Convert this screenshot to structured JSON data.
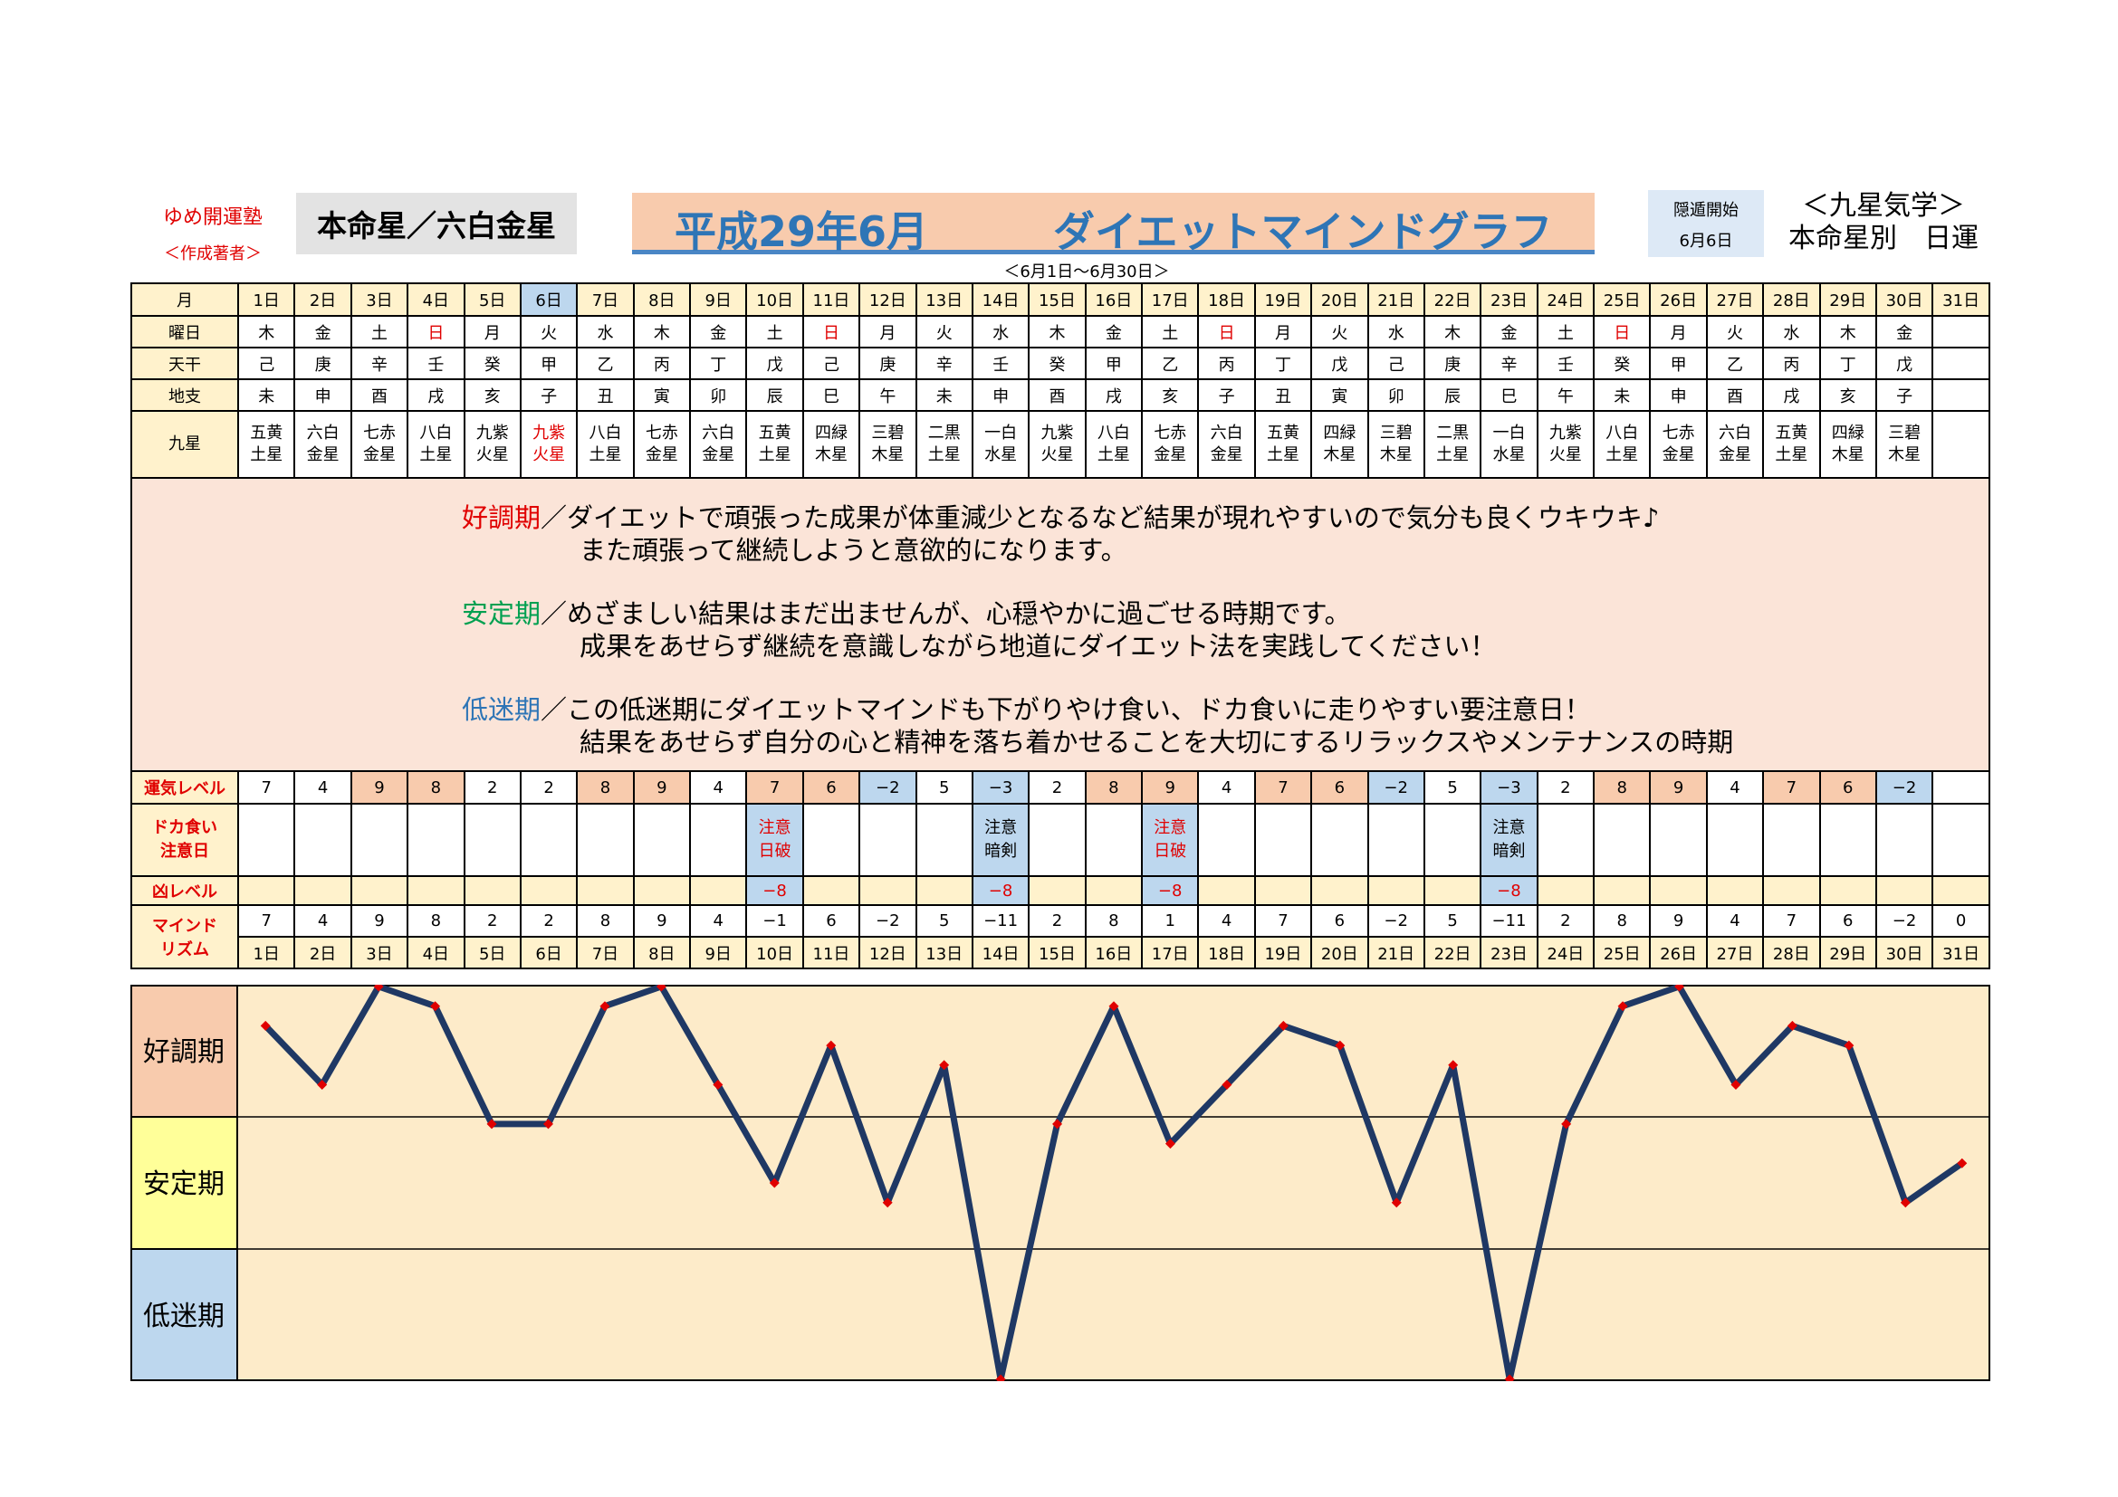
{
  "header": {
    "brand": "ゆめ開運塾",
    "author": "＜作成著者＞",
    "honmei": "本命星／六白金星",
    "title_left": "平成29年6月",
    "title_right": "ダイエットマインドグラフ",
    "subtitle": "＜6月1日～6月30日＞",
    "tonko_label": "隠遁開始",
    "tonko_date": "6月6日",
    "kyusei_line1": "＜九星気学＞",
    "kyusei_line2": "本命星別　日運"
  },
  "row_labels": {
    "month": "月",
    "weekday": "曜日",
    "tenkan": "天干",
    "chishi": "地支",
    "kyusei": "九星",
    "unki": "運気レベル",
    "doka_l1": "ドカ食い",
    "doka_l2": "注意日",
    "kyo": "凶レベル",
    "mind_l1": "マインド",
    "mind_l2": "リズム"
  },
  "days": [
    "1日",
    "2日",
    "3日",
    "4日",
    "5日",
    "6日",
    "7日",
    "8日",
    "9日",
    "10日",
    "11日",
    "12日",
    "13日",
    "14日",
    "15日",
    "16日",
    "17日",
    "18日",
    "19日",
    "20日",
    "21日",
    "22日",
    "23日",
    "24日",
    "25日",
    "26日",
    "27日",
    "28日",
    "29日",
    "30日",
    "31日"
  ],
  "weekdays": [
    "木",
    "金",
    "土",
    "日",
    "月",
    "火",
    "水",
    "木",
    "金",
    "土",
    "日",
    "月",
    "火",
    "水",
    "木",
    "金",
    "土",
    "日",
    "月",
    "火",
    "水",
    "木",
    "金",
    "土",
    "日",
    "月",
    "火",
    "水",
    "木",
    "金",
    ""
  ],
  "tenkan": [
    "己",
    "庚",
    "辛",
    "壬",
    "癸",
    "甲",
    "乙",
    "丙",
    "丁",
    "戊",
    "己",
    "庚",
    "辛",
    "壬",
    "癸",
    "甲",
    "乙",
    "丙",
    "丁",
    "戊",
    "己",
    "庚",
    "辛",
    "壬",
    "癸",
    "甲",
    "乙",
    "丙",
    "丁",
    "戊",
    ""
  ],
  "chishi": [
    "未",
    "申",
    "酉",
    "戌",
    "亥",
    "子",
    "丑",
    "寅",
    "卯",
    "辰",
    "巳",
    "午",
    "未",
    "申",
    "酉",
    "戌",
    "亥",
    "子",
    "丑",
    "寅",
    "卯",
    "辰",
    "巳",
    "午",
    "未",
    "申",
    "酉",
    "戌",
    "亥",
    "子",
    ""
  ],
  "kyusei_a": [
    "五黄",
    "六白",
    "七赤",
    "八白",
    "九紫",
    "九紫",
    "八白",
    "七赤",
    "六白",
    "五黄",
    "四緑",
    "三碧",
    "二黒",
    "一白",
    "九紫",
    "八白",
    "七赤",
    "六白",
    "五黄",
    "四緑",
    "三碧",
    "二黒",
    "一白",
    "九紫",
    "八白",
    "七赤",
    "六白",
    "五黄",
    "四緑",
    "三碧",
    ""
  ],
  "kyusei_b": [
    "土星",
    "金星",
    "金星",
    "土星",
    "火星",
    "火星",
    "土星",
    "金星",
    "金星",
    "土星",
    "木星",
    "木星",
    "土星",
    "水星",
    "火星",
    "土星",
    "金星",
    "金星",
    "土星",
    "木星",
    "木星",
    "土星",
    "水星",
    "火星",
    "土星",
    "金星",
    "金星",
    "土星",
    "木星",
    "木星",
    ""
  ],
  "unki": [
    "7",
    "4",
    "9",
    "8",
    "2",
    "2",
    "8",
    "9",
    "4",
    "7",
    "6",
    "−2",
    "5",
    "−3",
    "2",
    "8",
    "9",
    "4",
    "7",
    "6",
    "−2",
    "5",
    "−3",
    "2",
    "8",
    "9",
    "4",
    "7",
    "6",
    "−2",
    ""
  ],
  "doka_a": [
    "",
    "",
    "",
    "",
    "",
    "",
    "",
    "",
    "",
    "注意",
    "",
    "",
    "",
    "注意",
    "",
    "",
    "注意",
    "",
    "",
    "",
    "",
    "",
    "注意",
    "",
    "",
    "",
    "",
    "",
    "",
    "",
    ""
  ],
  "doka_b": [
    "",
    "",
    "",
    "",
    "",
    "",
    "",
    "",
    "",
    "日破",
    "",
    "",
    "",
    "暗剣",
    "",
    "",
    "日破",
    "",
    "",
    "",
    "",
    "",
    "暗剣",
    "",
    "",
    "",
    "",
    "",
    "",
    "",
    ""
  ],
  "kyo": [
    "",
    "",
    "",
    "",
    "",
    "",
    "",
    "",
    "",
    "−8",
    "",
    "",
    "",
    "−8",
    "",
    "",
    "−8",
    "",
    "",
    "",
    "",
    "",
    "−8",
    "",
    "",
    "",
    "",
    "",
    "",
    "",
    ""
  ],
  "mind": [
    "7",
    "4",
    "9",
    "8",
    "2",
    "2",
    "8",
    "9",
    "4",
    "−1",
    "6",
    "−2",
    "5",
    "−11",
    "2",
    "8",
    "1",
    "4",
    "7",
    "6",
    "−2",
    "5",
    "−11",
    "2",
    "8",
    "9",
    "4",
    "7",
    "6",
    "−2",
    "0"
  ],
  "description": {
    "k1": "好調期",
    "l1a": "／ダイエットで頑張った成果が体重減少となるなど結果が現れやすいので気分も良くウキウキ♪",
    "l1b": "また頑張って継続しようと意欲的になります。",
    "k2": "安定期",
    "l2a": "／めざましい結果はまだ出ませんが、心穏やかに過ごせる時期です。",
    "l2b": "成果をあせらず継続を意識しながら地道にダイエット法を実践してください！",
    "k3": "低迷期",
    "l3a": "／この低迷期にダイエットマインドも下がりやけ食い、ドカ食いに走りやすい要注意日！",
    "l3b": "結果をあせらず自分の心と精神を落ち着かせることを大切にするリラックスやメンテナンスの時期"
  },
  "chart_data": {
    "type": "line",
    "x": [
      "1日",
      "2日",
      "3日",
      "4日",
      "5日",
      "6日",
      "7日",
      "8日",
      "9日",
      "10日",
      "11日",
      "12日",
      "13日",
      "14日",
      "15日",
      "16日",
      "17日",
      "18日",
      "19日",
      "20日",
      "21日",
      "22日",
      "23日",
      "24日",
      "25日",
      "26日",
      "27日",
      "28日",
      "29日",
      "30日",
      "31日"
    ],
    "series": [
      {
        "values": [
          7,
          4,
          9,
          8,
          2,
          2,
          8,
          9,
          4,
          -1,
          6,
          -2,
          5,
          -11,
          2,
          8,
          1,
          4,
          7,
          6,
          -2,
          5,
          -11,
          2,
          8,
          9,
          4,
          7,
          6,
          -2,
          0
        ]
      }
    ],
    "bands": [
      "好調期",
      "安定期",
      "低迷期"
    ],
    "ylim": [
      -11,
      9
    ],
    "line_color": "#1f3864",
    "marker_color": "#e00000",
    "band_colors": [
      "#f8cbad",
      "#ffff99",
      "#bdd7ee"
    ],
    "plot_bg": "#fdebc9"
  }
}
